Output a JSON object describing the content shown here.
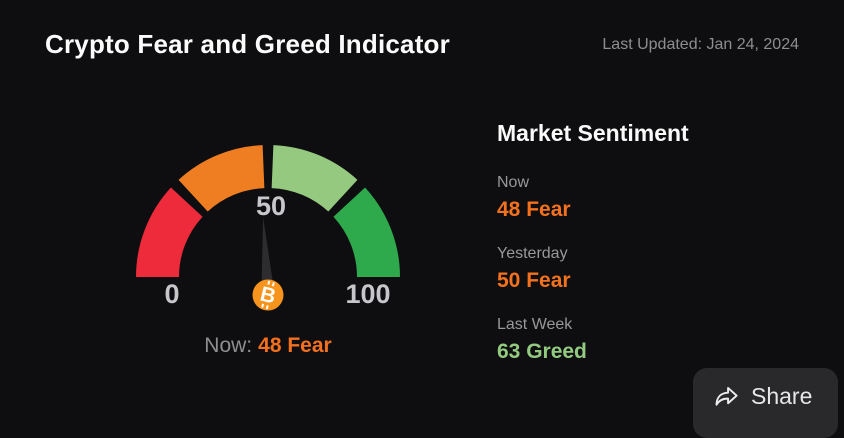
{
  "header": {
    "title": "Crypto Fear and Greed Indicator",
    "last_updated": "Last Updated: Jan 24, 2024"
  },
  "chart_data": {
    "type": "gauge",
    "title": "Crypto Fear and Greed Indicator",
    "min": 0,
    "max": 100,
    "value": 48,
    "value_text": "48 Fear",
    "tick_labels": {
      "min": "0",
      "mid": "50",
      "max": "100"
    },
    "segments": [
      {
        "from": 0,
        "to": 25,
        "color": "#ed2b3a"
      },
      {
        "from": 25,
        "to": 50,
        "color": "#ef7e23"
      },
      {
        "from": 50,
        "to": 75,
        "color": "#95c97f"
      },
      {
        "from": 75,
        "to": 100,
        "color": "#2ea94b"
      }
    ],
    "needle_color": "#2d2d30",
    "tick_label_color": "#c7c7cb",
    "center_icon": "bitcoin-icon",
    "center_icon_color": "#f7941d",
    "center_icon_glyph_color": "#ffffff"
  },
  "caption": {
    "prefix": "Now:",
    "value": "48 Fear",
    "value_color": "#f3701e"
  },
  "sentiment": {
    "heading": "Market Sentiment",
    "items": [
      {
        "label": "Now",
        "value": "48 Fear",
        "color": "#f4711e"
      },
      {
        "label": "Yesterday",
        "value": "50 Fear",
        "color": "#f4711e"
      },
      {
        "label": "Last Week",
        "value": "63 Greed",
        "color": "#92ca80"
      }
    ]
  },
  "share": {
    "label": "Share",
    "icon": "share-forward-icon"
  }
}
